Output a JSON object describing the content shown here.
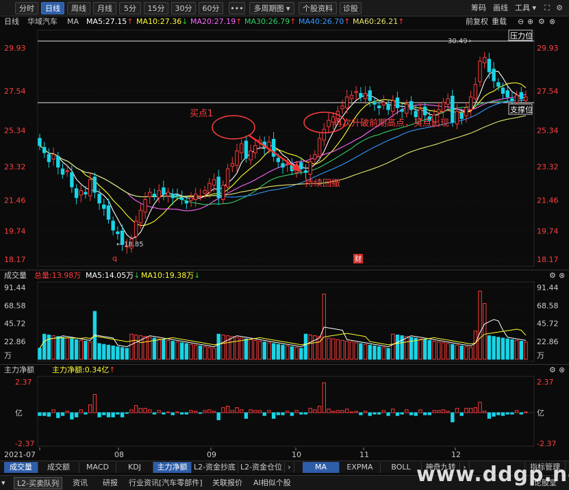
{
  "toolbar": {
    "periods": [
      "分时",
      "日线",
      "周线",
      "月线",
      "5分",
      "15分",
      "30分",
      "60分"
    ],
    "active": "日线",
    "more": "•••",
    "multi_period": "多周期图",
    "stock_info": "个股资料",
    "diagnose": "诊股",
    "right": [
      "筹码",
      "画线",
      "工具"
    ]
  },
  "ma_bar": {
    "period": "日线",
    "stock_name": "华域汽车",
    "indicator": "MA",
    "ma5": "MA5:27.15",
    "ma10": "MA10:27.36",
    "ma20": "MA20:27.19",
    "ma30": "MA30:26.79",
    "ma40": "MA40:26.70",
    "ma60": "MA60:26.21",
    "adjust": "前复权",
    "overlay": "重载"
  },
  "price_axis": [
    "29.93",
    "27.54",
    "25.34",
    "23.32",
    "21.46",
    "19.74",
    "18.17"
  ],
  "annotations": {
    "high": "30.49",
    "low": "18.85",
    "pressure": "压力位",
    "support": "支撑位",
    "buy1": "买点1",
    "breakout": "再次升破前期高点，买点出现",
    "pullback": "持续回撤",
    "marker_q": "q",
    "marker_cai": "财"
  },
  "volume_bar": {
    "label": "成交量",
    "total": "总量:13.98万",
    "ma5": "MA5:14.05万",
    "ma10": "MA10:19.38万",
    "axis": [
      "91.44",
      "68.58",
      "45.72",
      "22.86",
      "万"
    ]
  },
  "flow_bar": {
    "label": "主力净额",
    "value": "主力净额:0.34亿",
    "axis": [
      "2.37",
      "亿",
      "-2.37"
    ]
  },
  "date_axis": [
    "2021-07",
    "08",
    "09",
    "10",
    "11",
    "12"
  ],
  "indicator_tabs": [
    "成交量",
    "成交额",
    "MACD",
    "KDJ",
    "主力净额",
    "L2-资金抄底",
    "L2-资金仓位"
  ],
  "indicator_tabs_active": "主力净额",
  "indicator_tabs2": [
    "MA",
    "EXPMA",
    "BOLL",
    "神奇九转"
  ],
  "indicator_tabs2_active": "MA",
  "indicator_manage": "指标管理",
  "bottom_tabs": [
    "L2-买卖队列",
    "资讯",
    "研报",
    "行业资讯[汽车零部件]",
    "关联报价",
    "AI相似个股"
  ],
  "bottom_right": "论股堂",
  "watermark": "www.ddgp.net",
  "chart_data": {
    "type": "candlestick",
    "title": "华域汽车 日线",
    "x_range": [
      "2021-07",
      "2021-12"
    ],
    "ylim": [
      18.17,
      29.93
    ],
    "candles_close": [
      24.5,
      24.1,
      23.6,
      24.0,
      23.3,
      22.9,
      23.1,
      22.2,
      21.6,
      22.0,
      21.8,
      22.6,
      21.9,
      21.3,
      21.0,
      20.4,
      19.8,
      19.6,
      19.0,
      18.9,
      19.3,
      20.3,
      20.9,
      21.5,
      21.9,
      21.7,
      22.0,
      21.8,
      21.9,
      21.6,
      21.7,
      21.5,
      21.3,
      21.6,
      21.8,
      21.7,
      22.0,
      22.4,
      22.6,
      21.6,
      22.3,
      23.2,
      23.5,
      24.2,
      24.6,
      23.8,
      24.2,
      24.5,
      24.8,
      24.4,
      24.7,
      23.9,
      23.6,
      23.3,
      23.5,
      23.1,
      23.4,
      23.2,
      23.0,
      23.6,
      24.0,
      24.9,
      25.4,
      25.9,
      26.1,
      26.4,
      26.7,
      27.2,
      27.3,
      27.5,
      27.2,
      27.4,
      27.0,
      26.8,
      26.6,
      26.9,
      26.5,
      27.0,
      26.6,
      26.4,
      26.8,
      26.5,
      26.1,
      26.5,
      26.2,
      25.9,
      26.2,
      26.5,
      26.9,
      27.1,
      25.8,
      26.4,
      26.0,
      26.6,
      27.2,
      27.9,
      29.2,
      29.4,
      28.6,
      28.1,
      27.8,
      27.4,
      27.2,
      27.0,
      27.3,
      27.1,
      27.2
    ],
    "volume_axis_max": 91.44,
    "flow_axis": [
      -2.37,
      2.37
    ]
  },
  "colors": {
    "up": "#ff3b3b",
    "down": "#19d4e6",
    "ma5": "#ffffff",
    "ma10": "#ffff2e",
    "ma20": "#ff66ff",
    "ma30": "#33cc66",
    "ma40": "#3399ff",
    "ma60": "#e6e66e",
    "annotation": "#ff4040"
  }
}
